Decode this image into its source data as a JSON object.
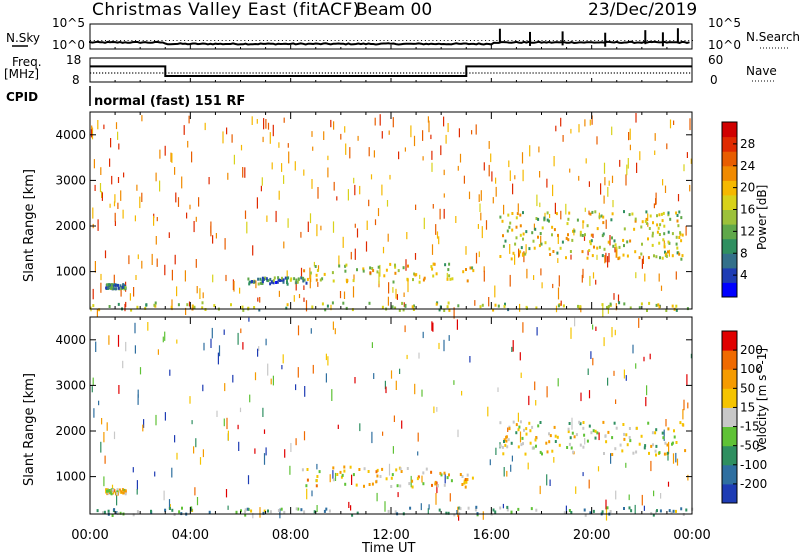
{
  "header": {
    "title": "Christmas Valley East (fitACF)",
    "beam": "Beam 00",
    "date": "23/Dec/2019"
  },
  "labels": {
    "nsky": "N.Sky",
    "nsky_ticks": [
      "10^5",
      "10^0"
    ],
    "nsearch": "N.Search",
    "nsearch_ticks": [
      "10^5",
      "10^0"
    ],
    "freq": "Freq.",
    "freq_unit": "[MHz]",
    "freq_ticks": [
      "18",
      "8"
    ],
    "nave": "Nave",
    "nave_ticks": [
      "60",
      "0"
    ],
    "cpid": "CPID",
    "mode": "normal (fast) 151 RF"
  },
  "chart_data": [
    {
      "type": "line",
      "name": "N.Sky / N.Search",
      "x_ticks": [
        "00:00",
        "04:00",
        "08:00",
        "12:00",
        "16:00",
        "20:00",
        "00:00"
      ],
      "spikes_hours": [
        16.3,
        17.5,
        18.8,
        20.5,
        22.1,
        22.8,
        23.4
      ],
      "ylim_left": [
        "10^0",
        "10^5"
      ],
      "ylim_right": [
        "10^0",
        "10^5"
      ]
    },
    {
      "type": "line",
      "name": "Freq / Nave",
      "ylim_left": [
        8,
        18
      ],
      "ylim_right": [
        0,
        60
      ],
      "frequency_segments": [
        {
          "from": 0,
          "to": 3,
          "mhz": 14.5
        },
        {
          "from": 3,
          "to": 15,
          "mhz": 10.5
        },
        {
          "from": 15,
          "to": 24,
          "mhz": 14.5
        }
      ],
      "nave_level": 24
    },
    {
      "type": "heatmap",
      "title": "Power",
      "ylabel": "Slant Range [km]",
      "ylim": [
        180,
        4500
      ],
      "y_ticks": [
        1000,
        2000,
        3000,
        4000
      ],
      "xlim_hours": [
        0,
        24
      ],
      "colorbar": {
        "label": "Power [dB]",
        "ticks": [
          4,
          8,
          12,
          16,
          20,
          24,
          28
        ],
        "colors": [
          "#0000ff",
          "#1e3cb4",
          "#33708a",
          "#2f8f60",
          "#5fa84a",
          "#9cc13a",
          "#d8d21a",
          "#f5b800",
          "#f08a00",
          "#e85d00",
          "#e02a00",
          "#d00000"
        ]
      },
      "echo_regions": [
        {
          "t0": 8.4,
          "t1": 15.3,
          "r0": 800,
          "r1": 1200,
          "level": 0.55
        },
        {
          "t0": 16.3,
          "t1": 23.7,
          "r0": 1300,
          "r1": 2350,
          "level": 0.5
        },
        {
          "t0": 0.0,
          "t1": 24.0,
          "r0": 180,
          "r1": 350,
          "level": 0.45
        },
        {
          "t0": 0.6,
          "t1": 1.4,
          "r0": 650,
          "r1": 750,
          "level": 0.3
        },
        {
          "t0": 6.2,
          "t1": 8.6,
          "r0": 750,
          "r1": 900,
          "level": 0.3
        }
      ]
    },
    {
      "type": "heatmap",
      "title": "Velocity",
      "ylabel": "Slant Range [km]",
      "xlabel": "Time UT",
      "ylim": [
        180,
        4500
      ],
      "y_ticks": [
        1000,
        2000,
        3000,
        4000
      ],
      "xlim_hours": [
        0,
        24
      ],
      "x_ticks": [
        "00:00",
        "04:00",
        "08:00",
        "12:00",
        "16:00",
        "20:00",
        "00:00"
      ],
      "colorbar": {
        "label": "Velocity [m s^-1]",
        "ticks": [
          200,
          100,
          50,
          15,
          -15,
          -50,
          -100,
          -200
        ],
        "colors": [
          "#1e3cb4",
          "#2f6fa0",
          "#2f8f60",
          "#5fc236",
          "#c8c8c8",
          "#f5c400",
          "#f59b00",
          "#f06a00",
          "#e00000"
        ]
      },
      "echo_regions": [
        {
          "t0": 8.4,
          "t1": 15.3,
          "r0": 800,
          "r1": 1250,
          "level": 0.6
        },
        {
          "t0": 16.3,
          "t1": 23.7,
          "r0": 1500,
          "r1": 2250,
          "level": 0.5
        },
        {
          "t0": 0.0,
          "t1": 24.0,
          "r0": 180,
          "r1": 360,
          "level": 0.35
        },
        {
          "t0": 0.6,
          "t1": 1.4,
          "r0": 650,
          "r1": 750,
          "level": 0.6
        }
      ]
    }
  ]
}
